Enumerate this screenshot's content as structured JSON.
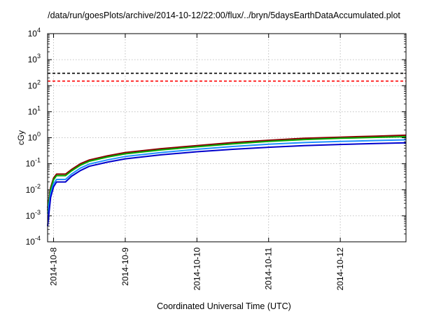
{
  "chart_data": {
    "type": "line",
    "title": "/data/run/goesPlots/archive/2014-10-12/22:00/flux/../bryn/5daysEarthDataAccumulated.plot",
    "xlabel": "Coordinated Universal Time (UTC)",
    "ylabel": "cGy",
    "yscale": "log",
    "ylim": [
      0.0001,
      10000
    ],
    "ytick_labels": [
      {
        "base": "10",
        "exp": "-4"
      },
      {
        "base": "10",
        "exp": "-3"
      },
      {
        "base": "10",
        "exp": "-2"
      },
      {
        "base": "10",
        "exp": "-1"
      },
      {
        "base": "10",
        "exp": "0"
      },
      {
        "base": "10",
        "exp": "1"
      },
      {
        "base": "10",
        "exp": "2"
      },
      {
        "base": "10",
        "exp": "3"
      },
      {
        "base": "10",
        "exp": "4"
      }
    ],
    "xlim": [
      "2014-10-07T22:00",
      "2014-10-12T22:00"
    ],
    "xticks": [
      "2014-10-8",
      "2014-10-9",
      "2014-10-10",
      "2014-10-11",
      "2014-10-12"
    ],
    "grid": true,
    "thresholds": [
      {
        "value": 300,
        "color": "#000000",
        "style": "dashed"
      },
      {
        "value": 150,
        "color": "#ff0000",
        "style": "dashed"
      }
    ],
    "x": [
      "2014-10-07T22:00",
      "2014-10-07T23:00",
      "2014-10-08T00:00",
      "2014-10-08T01:00",
      "2014-10-08T04:00",
      "2014-10-08T06:00",
      "2014-10-08T09:00",
      "2014-10-08T12:00",
      "2014-10-08T18:00",
      "2014-10-09T00:00",
      "2014-10-09T12:00",
      "2014-10-10T00:00",
      "2014-10-10T12:00",
      "2014-10-11T00:00",
      "2014-10-11T12:00",
      "2014-10-12T00:00",
      "2014-10-12T12:00",
      "2014-10-12T22:00"
    ],
    "series": [
      {
        "color": "#8b0000",
        "values": [
          0.002,
          0.012,
          0.028,
          0.04,
          0.04,
          0.06,
          0.1,
          0.14,
          0.2,
          0.27,
          0.38,
          0.5,
          0.65,
          0.8,
          0.95,
          1.05,
          1.15,
          1.25
        ]
      },
      {
        "color": "#00aa00",
        "values": [
          0.0016,
          0.01,
          0.024,
          0.035,
          0.035,
          0.053,
          0.088,
          0.125,
          0.18,
          0.24,
          0.34,
          0.45,
          0.58,
          0.72,
          0.85,
          0.95,
          1.03,
          1.1
        ]
      },
      {
        "color": "#1e90ff",
        "values": [
          0.0012,
          0.007,
          0.017,
          0.025,
          0.025,
          0.04,
          0.068,
          0.098,
          0.14,
          0.19,
          0.27,
          0.36,
          0.46,
          0.56,
          0.65,
          0.72,
          0.78,
          0.83
        ]
      },
      {
        "color": "#0000cc",
        "values": [
          0.0004,
          0.005,
          0.013,
          0.02,
          0.02,
          0.033,
          0.055,
          0.08,
          0.115,
          0.155,
          0.22,
          0.29,
          0.36,
          0.43,
          0.5,
          0.55,
          0.6,
          0.64
        ]
      }
    ]
  }
}
